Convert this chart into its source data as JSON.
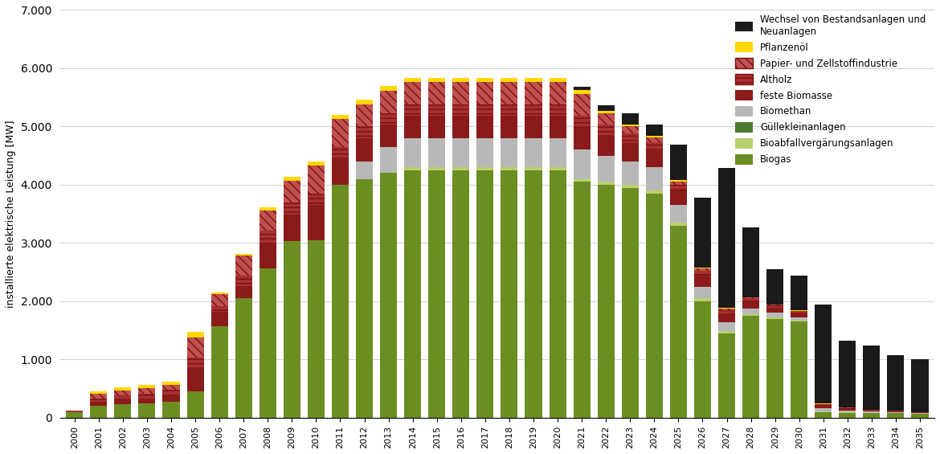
{
  "years": [
    2000,
    2001,
    2002,
    2003,
    2004,
    2005,
    2006,
    2007,
    2008,
    2009,
    2010,
    2011,
    2012,
    2013,
    2014,
    2015,
    2016,
    2017,
    2018,
    2019,
    2020,
    2021,
    2022,
    2023,
    2024,
    2025,
    2026,
    2027,
    2028,
    2029,
    2030,
    2031,
    2032,
    2033,
    2034,
    2035
  ],
  "biogas": [
    100,
    200,
    230,
    250,
    280,
    450,
    1570,
    2060,
    2560,
    3040,
    3050,
    4000,
    4100,
    4200,
    4250,
    4250,
    4250,
    4250,
    4250,
    4250,
    4250,
    4050,
    4000,
    3950,
    3850,
    3300,
    2000,
    1450,
    1750,
    1700,
    1650,
    100,
    80,
    80,
    80,
    70
  ],
  "bioabfall": [
    0,
    0,
    0,
    0,
    0,
    0,
    0,
    0,
    0,
    0,
    0,
    0,
    0,
    0,
    50,
    50,
    50,
    50,
    50,
    50,
    50,
    50,
    50,
    50,
    50,
    50,
    50,
    40,
    30,
    25,
    20,
    15,
    10,
    5,
    5,
    5
  ],
  "guelle": [
    0,
    0,
    0,
    0,
    0,
    0,
    0,
    0,
    0,
    0,
    0,
    0,
    0,
    0,
    0,
    0,
    0,
    0,
    0,
    0,
    0,
    0,
    0,
    0,
    0,
    0,
    0,
    0,
    0,
    0,
    0,
    0,
    0,
    0,
    0,
    0
  ],
  "biomethan": [
    0,
    0,
    0,
    0,
    0,
    0,
    0,
    0,
    0,
    0,
    0,
    0,
    300,
    450,
    500,
    500,
    500,
    500,
    500,
    500,
    500,
    500,
    450,
    400,
    400,
    300,
    200,
    150,
    100,
    80,
    60,
    50,
    30,
    20,
    15,
    10
  ],
  "feste": [
    0,
    80,
    80,
    80,
    120,
    400,
    250,
    200,
    450,
    450,
    600,
    450,
    400,
    380,
    380,
    380,
    380,
    380,
    380,
    380,
    380,
    380,
    350,
    320,
    300,
    250,
    200,
    150,
    120,
    90,
    70,
    50,
    35,
    20,
    15,
    10
  ],
  "altholz": [
    20,
    50,
    70,
    80,
    80,
    180,
    100,
    180,
    200,
    200,
    200,
    200,
    200,
    200,
    200,
    200,
    200,
    200,
    200,
    200,
    200,
    200,
    180,
    160,
    130,
    100,
    80,
    60,
    50,
    40,
    30,
    20,
    15,
    10,
    8,
    5
  ],
  "papier": [
    0,
    80,
    90,
    100,
    80,
    350,
    200,
    350,
    350,
    380,
    480,
    480,
    380,
    380,
    380,
    380,
    380,
    380,
    380,
    380,
    380,
    380,
    200,
    120,
    80,
    60,
    40,
    25,
    15,
    10,
    8,
    5,
    3,
    2,
    1,
    1
  ],
  "pflanzen": [
    0,
    40,
    50,
    50,
    60,
    100,
    30,
    30,
    50,
    70,
    70,
    70,
    80,
    80,
    80,
    80,
    80,
    80,
    80,
    80,
    80,
    70,
    40,
    30,
    30,
    25,
    15,
    10,
    8,
    6,
    4,
    3,
    2,
    1,
    1,
    1
  ],
  "wechsel": [
    0,
    0,
    0,
    0,
    0,
    0,
    0,
    0,
    0,
    0,
    0,
    0,
    0,
    0,
    0,
    0,
    0,
    0,
    0,
    0,
    0,
    50,
    100,
    200,
    200,
    600,
    1200,
    2400,
    1200,
    600,
    600,
    1700,
    1150,
    1100,
    950,
    900
  ],
  "c_biogas": "#6b8e23",
  "c_bioabfall": "#b8d06e",
  "c_guelle": "#4a7a2e",
  "c_biomethan": "#b8b8b8",
  "c_feste": "#8b1a1a",
  "c_altholz": "#a83030",
  "c_papier_fill": "#c05050",
  "c_pflanzen": "#ffd700",
  "c_wechsel": "#1a1a1a",
  "ylabel": "installierte elektrische Leistung [MW]",
  "ylim": [
    0,
    7000
  ],
  "yticks": [
    0,
    1000,
    2000,
    3000,
    4000,
    5000,
    6000,
    7000
  ]
}
